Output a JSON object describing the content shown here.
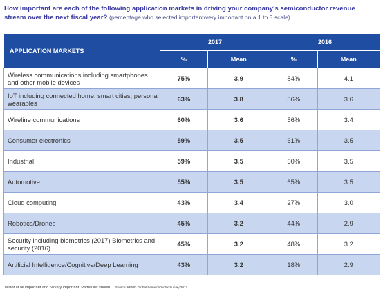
{
  "title": {
    "question": "How important are each of the following application markets in driving your company's semiconductor revenue stream over the next fiscal year?",
    "note": "(percentage who selected important/very important on a 1 to 5 scale)"
  },
  "table": {
    "header": {
      "label": "APPLICATION MARKETS",
      "years": [
        "2017",
        "2016"
      ],
      "subheaders": [
        "%",
        "Mean",
        "%",
        "Mean"
      ]
    },
    "rows": [
      [
        "Wireless communications including smartphones and other mobile devices",
        "75%",
        "3.9",
        "84%",
        "4.1"
      ],
      [
        "IoT including connected home, smart cities, personal wearables",
        "63%",
        "3.8",
        "56%",
        "3.6"
      ],
      [
        "Wireline communications",
        "60%",
        "3.6",
        "56%",
        "3.4"
      ],
      [
        "Consumer electronics",
        "59%",
        "3.5",
        "61%",
        "3.5"
      ],
      [
        "Industrial",
        "59%",
        "3.5",
        "60%",
        "3.5"
      ],
      [
        "Automotive",
        "55%",
        "3.5",
        "65%",
        "3.5"
      ],
      [
        "Cloud computing",
        "43%",
        "3.4",
        "27%",
        "3.0"
      ],
      [
        "Robotics/Drones",
        "45%",
        "3.2",
        "44%",
        "2.9"
      ],
      [
        "Security including biometrics (2017) Biometrics and security (2016)",
        "45%",
        "3.2",
        "48%",
        "3.2"
      ],
      [
        "Artificial Intelligence/Cognitive/Deep Learning",
        "43%",
        "3.2",
        "18%",
        "2.9"
      ]
    ]
  },
  "footnote": {
    "text": "1=Not at all important and 5=Very important.  Partial list shown.",
    "source": "Source: KPMG Global Semiconductor Survey 2017"
  }
}
